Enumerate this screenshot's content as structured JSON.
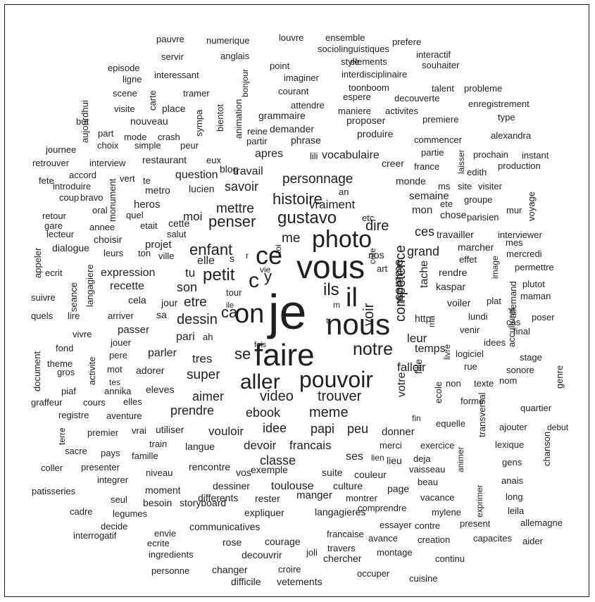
{
  "words": [
    "je",
    "vous",
    "nous",
    "faire",
    "on",
    "il",
    "ce",
    "photo",
    "pouvoir",
    "aller",
    "c",
    "y",
    "ils",
    "petit",
    "enfant",
    "penser",
    "gustavo",
    "histoire",
    "personnage",
    "vraiment",
    "mettre",
    "savoir",
    "me",
    "dire",
    "notre",
    "se",
    "ca",
    "voir",
    "etre",
    "dessin",
    "son",
    "tu",
    "moi",
    "elle",
    "s",
    "r",
    "competence",
    "comme",
    "ces",
    "grand",
    "tache",
    "video",
    "trouver",
    "meme",
    "ebook",
    "idee",
    "papi",
    "peu",
    "vouloir",
    "devoir",
    "francais",
    "classe",
    "prendre",
    "aimer",
    "super",
    "tres",
    "parler",
    "pari",
    "ah",
    "leur",
    "temps",
    "falloir",
    "votre",
    "fille",
    "expression",
    "recette",
    "cette",
    "projet",
    "heros",
    "question",
    "lucien",
    "apres",
    "travail",
    "vocabulaire",
    "semaine",
    "mon",
    "chose",
    "travailler",
    "interviewer",
    "marcher",
    "rendre",
    "effet",
    "mercredi",
    "permettre",
    "kaspar",
    "voiler",
    "plutot",
    "maman",
    "plat",
    "poser",
    "lundi",
    "venir",
    "idees",
    "acculturel",
    "logiciel",
    "stage",
    "sonore",
    "rue",
    "non",
    "texte",
    "nom",
    "forme",
    "quartier",
    "genre",
    "ajouter",
    "debut",
    "lexique",
    "gens",
    "chanson",
    "anais",
    "long",
    "leila",
    "allemagne",
    "aider",
    "present",
    "contre",
    "mylene",
    "vacance",
    "comprendre",
    "montrer",
    "culture",
    "page",
    "beau",
    "couleur",
    "vaisseau",
    "lieu",
    "suite",
    "ses",
    "merci",
    "exercice",
    "deja",
    "donner",
    "lien",
    "fin",
    "equelle",
    "ecole",
    "transversal",
    "animer",
    "exprimer",
    "allemand",
    "image",
    "cas",
    "final",
    "http",
    "ma",
    "livre",
    "jeanne",
    "art",
    "cote",
    "toi",
    "m",
    "t",
    "vie",
    "ile",
    "fois",
    "tour",
    "jour",
    "cela",
    "sa",
    "arriver",
    "passer",
    "jouer",
    "pere",
    "mot",
    "adorer",
    "eleves",
    "annika",
    "tes",
    "elles",
    "cours",
    "graffeur",
    "piaf",
    "theme",
    "gros",
    "fond",
    "vivre",
    "document",
    "activite",
    "lire",
    "quels",
    "suivre",
    "seance",
    "langagiere",
    "ecrit",
    "appeler",
    "dialogue",
    "leurs",
    "ton",
    "ville",
    "choisir",
    "lecteur",
    "gare",
    "retour",
    "annee",
    "oral",
    "coup",
    "bravo",
    "introduire",
    "fete",
    "accord",
    "retrouver",
    "interview",
    "restaurant",
    "eux",
    "blog",
    "journee",
    "choix",
    "simple",
    "peur",
    "part",
    "but",
    "mode",
    "crash",
    "visite",
    "nouveau",
    "place",
    "sympa",
    "scene",
    "carte",
    "tramer",
    "ligne",
    "interessant",
    "episode",
    "pauvre",
    "servir",
    "numerique",
    "anglais",
    "louvre",
    "ensemble",
    "sociolinguistiques",
    "prefere",
    "interactif",
    "souhaiter",
    "style",
    "elements",
    "point",
    "imaginer",
    "interdisciplinaire",
    "toonboom",
    "bonjour",
    "courant",
    "attendre",
    "espere",
    "maniere",
    "decouverte",
    "activites",
    "talent",
    "probleme",
    "enregistrement",
    "type",
    "grammaire",
    "proposer",
    "premiere",
    "demander",
    "reine",
    "animation",
    "bientot",
    "partir",
    "phrase",
    "produire",
    "commencer",
    "alexandra",
    "lili",
    "partie",
    "creer",
    "france",
    "prochain",
    "instant",
    "laisser",
    "edith",
    "production",
    "monde",
    "ms",
    "site",
    "visiter",
    "ete",
    "groupe",
    "mur",
    "voyage",
    "parisien",
    "mes",
    "an",
    "etc",
    "nos",
    "vert",
    "te",
    "metro",
    "quel",
    "etait",
    "monument",
    "salut",
    "registre",
    "aventure",
    "premier",
    "vrai",
    "utiliser",
    "langue",
    "rencontre",
    "vos",
    "exemple",
    "sacre",
    "pays",
    "famille",
    "train",
    "niveau",
    "coller",
    "presenter",
    "integrer",
    "moment",
    "dessiner",
    "differents",
    "toulouse",
    "manger",
    "rester",
    "patisseries",
    "seul",
    "besoin",
    "storyboard",
    "expliquer",
    "langagieres",
    "cadre",
    "legumes",
    "decide",
    "envie",
    "ecrite",
    "interrogatif",
    "ingredients",
    "communicatives",
    "rose",
    "courage",
    "francaise",
    "avance",
    "essayer",
    "creation",
    "capacites",
    "travers",
    "joli",
    "chercher",
    "montage",
    "continu",
    "decouvrir",
    "croire",
    "difficile",
    "vetements",
    "occuper",
    "cuisine",
    "personne",
    "changer",
    "terre",
    "aujourdhui"
  ]
}
